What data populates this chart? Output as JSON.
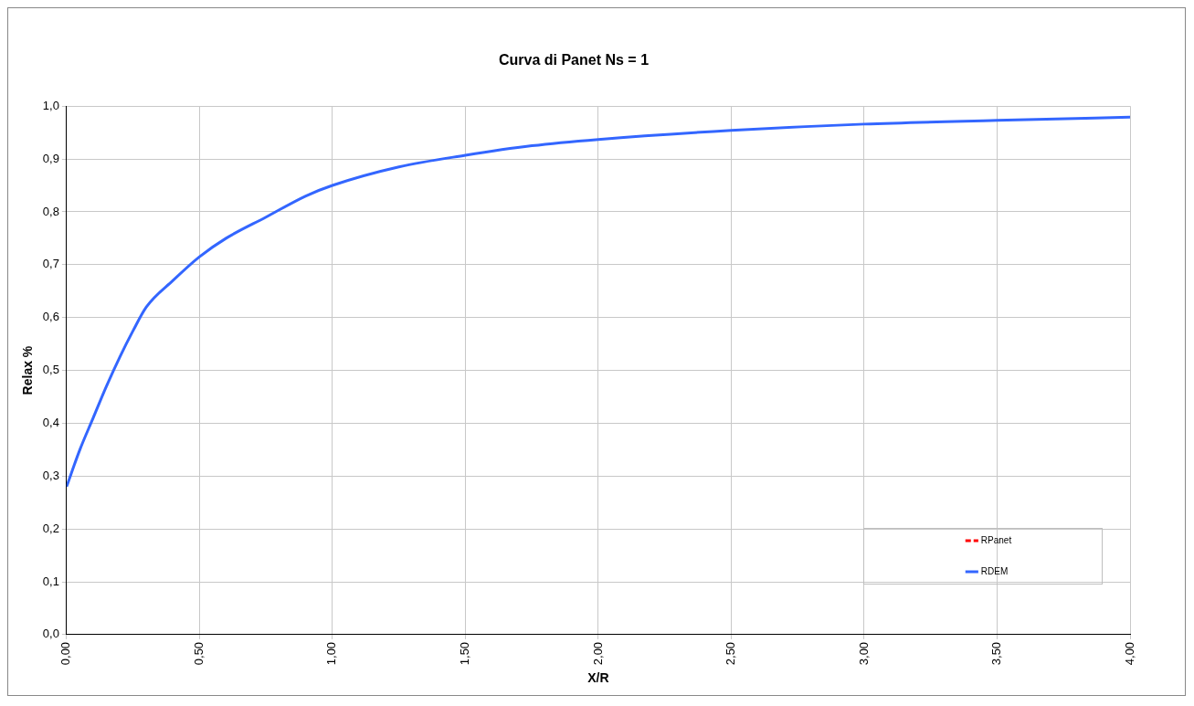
{
  "chart_data": {
    "type": "line",
    "title": "Curva di Panet Ns = 1",
    "xlabel": "X/R",
    "ylabel": "Relax %",
    "x": [
      0,
      0.05,
      0.1,
      0.15,
      0.2,
      0.25,
      0.3,
      0.4,
      0.5,
      0.6,
      0.75,
      0.9,
      1.0,
      1.25,
      1.5,
      1.75,
      2.0,
      2.5,
      3.0,
      3.5,
      4.0
    ],
    "series": [
      {
        "name": "RPanet",
        "color": "#ff0000",
        "line_style": "dashed",
        "values": [
          null,
          null,
          null,
          null,
          null,
          null,
          null,
          null,
          null,
          null,
          null,
          null,
          null,
          null,
          null,
          null,
          null,
          null,
          null,
          null,
          null
        ]
      },
      {
        "name": "RDEM",
        "color": "#3366ff",
        "line_style": "solid",
        "values": [
          0.28,
          0.35,
          0.41,
          0.47,
          0.525,
          0.575,
          0.62,
          0.67,
          0.715,
          0.75,
          0.79,
          0.83,
          0.85,
          0.885,
          0.907,
          0.925,
          0.937,
          0.954,
          0.966,
          0.973,
          0.979
        ]
      }
    ],
    "xlim": [
      0,
      4
    ],
    "xticks": [
      {
        "value": 0,
        "label": "0,00"
      },
      {
        "value": 0.5,
        "label": "0,50"
      },
      {
        "value": 1,
        "label": "1,00"
      },
      {
        "value": 1.5,
        "label": "1,50"
      },
      {
        "value": 2,
        "label": "2,00"
      },
      {
        "value": 2.5,
        "label": "2,50"
      },
      {
        "value": 3,
        "label": "3,00"
      },
      {
        "value": 3.5,
        "label": "3,50"
      },
      {
        "value": 4,
        "label": "4,00"
      }
    ],
    "ylim": [
      0,
      1
    ],
    "yticks": [
      {
        "value": 0,
        "label": "0,0"
      },
      {
        "value": 0.1,
        "label": "0,1"
      },
      {
        "value": 0.2,
        "label": "0,2"
      },
      {
        "value": 0.3,
        "label": "0,3"
      },
      {
        "value": 0.4,
        "label": "0,4"
      },
      {
        "value": 0.5,
        "label": "0,5"
      },
      {
        "value": 0.6,
        "label": "0,6"
      },
      {
        "value": 0.7,
        "label": "0,7"
      },
      {
        "value": 0.8,
        "label": "0,8"
      },
      {
        "value": 0.9,
        "label": "0,9"
      },
      {
        "value": 1,
        "label": "1,0"
      }
    ],
    "grid": true,
    "legend": "bottom right",
    "marker": "none"
  }
}
